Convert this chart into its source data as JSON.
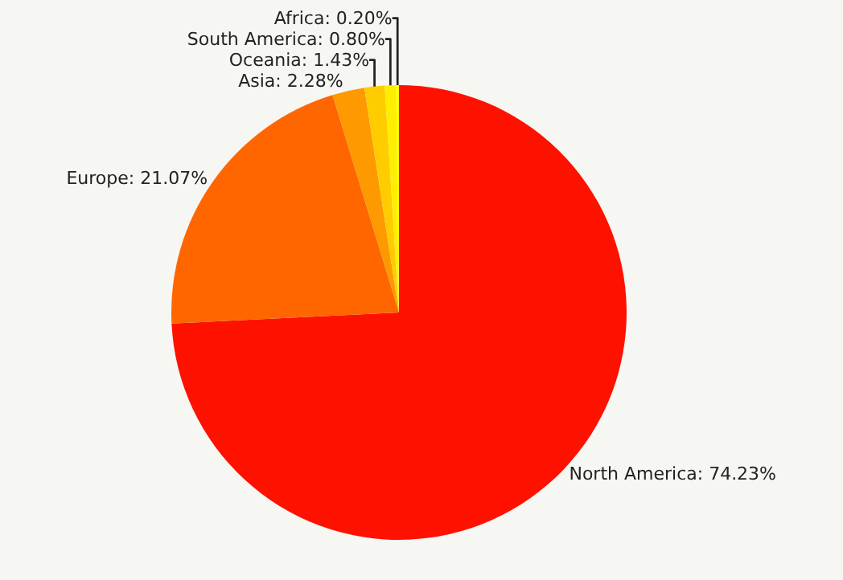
{
  "chart_data": {
    "type": "pie",
    "categories": [
      "North America",
      "Europe",
      "Asia",
      "Oceania",
      "South America",
      "Africa"
    ],
    "values": [
      74.23,
      21.07,
      2.28,
      1.43,
      0.8,
      0.2
    ],
    "value_labels": [
      "74.23%",
      "21.07%",
      "2.28%",
      "1.43%",
      "0.80%",
      "0.20%"
    ],
    "colors": [
      "#ff1100",
      "#ff6600",
      "#ff9900",
      "#ffcc00",
      "#ffee00",
      "#ffff00"
    ],
    "legend": false
  }
}
